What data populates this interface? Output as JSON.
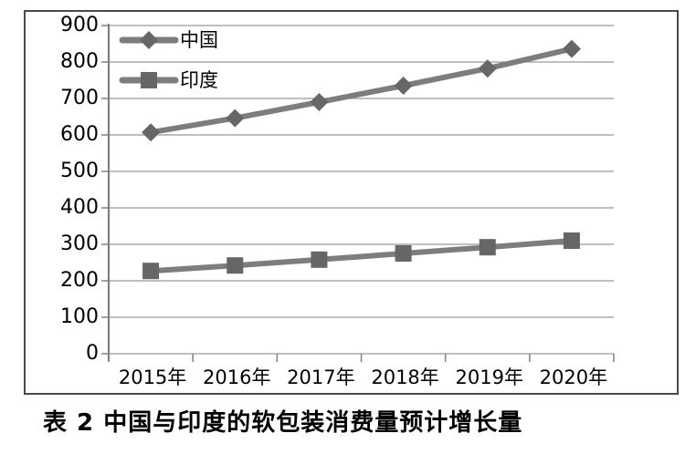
{
  "chart_data": {
    "type": "line",
    "caption": "表 2  中国与印度的软包装消费量预计增长量",
    "categories": [
      "2015年",
      "2016年",
      "2017年",
      "2018年",
      "2019年",
      "2020年"
    ],
    "series": [
      {
        "name": "中国",
        "marker": "diamond",
        "values": [
          607,
          646,
          690,
          735,
          782,
          836
        ]
      },
      {
        "name": "印度",
        "marker": "square",
        "values": [
          227,
          242,
          258,
          275,
          292,
          310
        ]
      }
    ],
    "ylim": [
      0,
      900
    ],
    "yticks": [
      900,
      800,
      700,
      600,
      500,
      400,
      300,
      200,
      100,
      0
    ],
    "grid": true,
    "legend_position": "top-left",
    "colors": {
      "line": "#7d7d7d",
      "marker": "#666666",
      "gridline": "#999999",
      "axis": "#808080",
      "border": "#4a4a4a",
      "text": "#000000",
      "background": "#ffffff"
    }
  }
}
